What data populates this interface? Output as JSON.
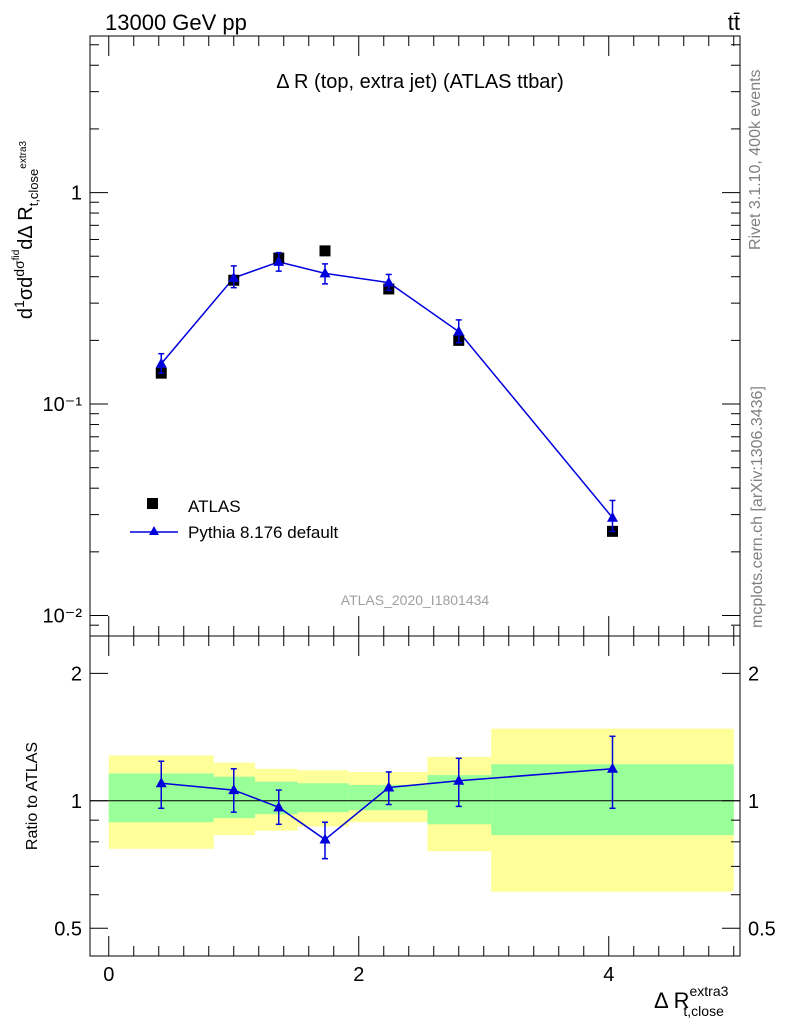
{
  "header": {
    "left": "13000 GeV pp",
    "right": "tt̄"
  },
  "side": {
    "rivet": "Rivet 3.1.10,  400k events",
    "mcplots": "mcplots.cern.ch [arXiv:1306.3436]"
  },
  "chart_data": [
    {
      "type": "scatter",
      "title": "Δ R (top, extra jet) (ATLAS ttbar)",
      "watermark": "ATLAS_2020_I1801434",
      "ylabel": "1/σ dσ^fid / dΔ R_t,close^extra3",
      "yscale": "log",
      "ylim": [
        0.008,
        5.5
      ],
      "xlim": [
        -0.15,
        5.05
      ],
      "ytick_labels": [
        "10⁻²",
        "10⁻¹",
        "1"
      ],
      "legend_position": "left",
      "series": [
        {
          "name": "ATLAS",
          "marker": "square",
          "color": "#000000",
          "x": [
            0.42,
            1.0,
            1.36,
            1.73,
            2.24,
            2.8,
            4.03
          ],
          "y": [
            0.14,
            0.385,
            0.49,
            0.53,
            0.35,
            0.2,
            0.025
          ]
        },
        {
          "name": "Pythia 8.176 default",
          "marker": "triangle",
          "color": "#0000dd",
          "x": [
            0.42,
            1.0,
            1.36,
            1.73,
            2.24,
            2.8,
            4.03
          ],
          "y": [
            0.155,
            0.395,
            0.47,
            0.415,
            0.375,
            0.22,
            0.029
          ],
          "err_lo": [
            0.14,
            0.355,
            0.425,
            0.37,
            0.345,
            0.195,
            0.025
          ],
          "err_hi": [
            0.173,
            0.45,
            0.52,
            0.46,
            0.41,
            0.25,
            0.035
          ]
        }
      ]
    },
    {
      "type": "line",
      "ylabel": "Ratio to ATLAS",
      "xlabel": "Δ R_t,close^extra3",
      "xlim": [
        -0.15,
        5.05
      ],
      "ylim": [
        0.43,
        2.45
      ],
      "x_tick_labels": [
        "0",
        "2",
        "4"
      ],
      "y_tick_labels": [
        "0.5",
        "1",
        "2"
      ],
      "bands": {
        "edges": [
          0.0,
          0.84,
          1.17,
          1.51,
          1.92,
          2.55,
          3.06,
          5.0
        ],
        "yellow_lo": [
          0.77,
          0.83,
          0.85,
          0.87,
          0.89,
          0.76,
          0.61
        ],
        "yellow_hi": [
          1.28,
          1.23,
          1.19,
          1.18,
          1.17,
          1.27,
          1.48
        ],
        "green_lo": [
          0.89,
          0.91,
          0.93,
          0.94,
          0.95,
          0.88,
          0.83
        ],
        "green_hi": [
          1.16,
          1.14,
          1.11,
          1.1,
          1.09,
          1.15,
          1.22
        ]
      },
      "series": [
        {
          "name": "Pythia 8.176 default",
          "color": "#0000dd",
          "x": [
            0.42,
            1.0,
            1.36,
            1.73,
            2.24,
            2.8,
            4.03
          ],
          "y": [
            1.1,
            1.06,
            0.965,
            0.81,
            1.075,
            1.115,
            1.19
          ],
          "err_lo": [
            0.96,
            0.94,
            0.88,
            0.73,
            0.98,
            0.97,
            0.96
          ],
          "err_hi": [
            1.24,
            1.19,
            1.06,
            0.89,
            1.17,
            1.26,
            1.42
          ]
        }
      ]
    }
  ]
}
